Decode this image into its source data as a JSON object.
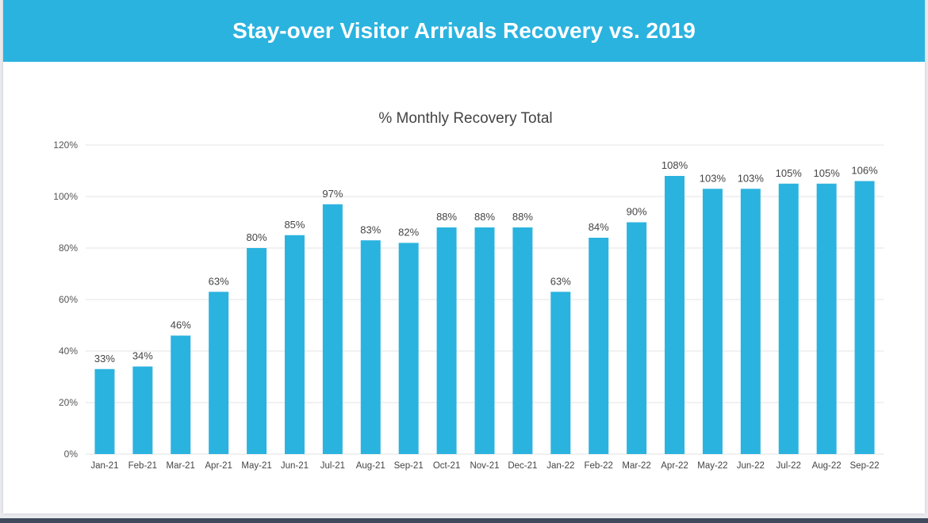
{
  "header": {
    "title": "Stay-over Visitor Arrivals Recovery vs. 2019"
  },
  "colors": {
    "banner": "#2bb3df",
    "bar": "#2bb3df",
    "grid": "#e3e3e3",
    "text": "#444444"
  },
  "chart_data": {
    "type": "bar",
    "title": "% Monthly Recovery Total",
    "xlabel": "",
    "ylabel": "",
    "ylim": [
      0,
      120
    ],
    "yticks": [
      0,
      20,
      40,
      60,
      80,
      100,
      120
    ],
    "ytick_labels": [
      "0%",
      "20%",
      "40%",
      "60%",
      "80%",
      "100%",
      "120%"
    ],
    "grid": true,
    "categories": [
      "Jan-21",
      "Feb-21",
      "Mar-21",
      "Apr-21",
      "May-21",
      "Jun-21",
      "Jul-21",
      "Aug-21",
      "Sep-21",
      "Oct-21",
      "Nov-21",
      "Dec-21",
      "Jan-22",
      "Feb-22",
      "Mar-22",
      "Apr-22",
      "May-22",
      "Jun-22",
      "Jul-22",
      "Aug-22",
      "Sep-22"
    ],
    "values": [
      33,
      34,
      46,
      63,
      80,
      85,
      97,
      83,
      82,
      88,
      88,
      88,
      63,
      84,
      90,
      108,
      103,
      103,
      105,
      105,
      106
    ],
    "data_labels": [
      "33%",
      "34%",
      "46%",
      "63%",
      "80%",
      "85%",
      "97%",
      "83%",
      "82%",
      "88%",
      "88%",
      "88%",
      "63%",
      "84%",
      "90%",
      "108%",
      "103%",
      "103%",
      "105%",
      "105%",
      "106%"
    ]
  }
}
